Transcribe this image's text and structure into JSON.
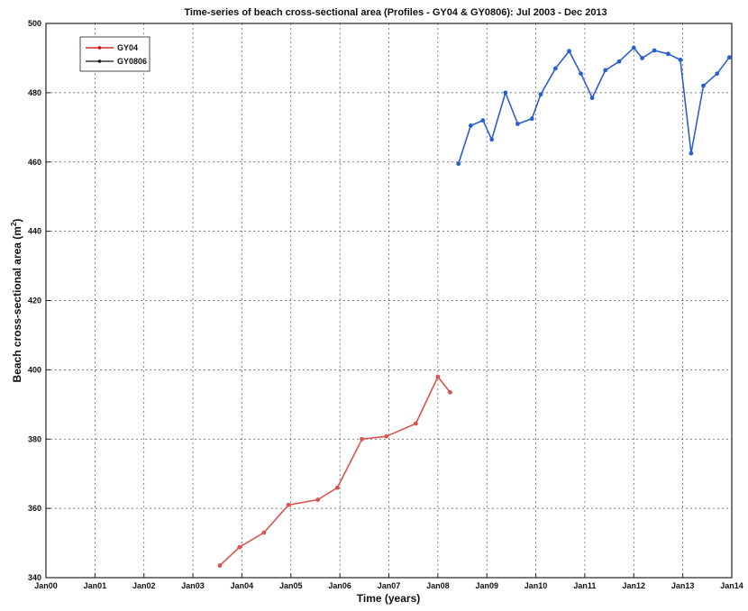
{
  "chart_data": {
    "type": "line",
    "title": "Time-series of beach cross-sectional area (Profiles - GY04 & GY0806): Jul 2003 - Dec 2013",
    "xlabel": "Time (years)",
    "ylabel": "Beach cross-sectional area (m",
    "ylabel_superscript": "2",
    "ylabel_close": ")",
    "x_tick_labels": [
      "Jan00",
      "Jan01",
      "Jan02",
      "Jan03",
      "Jan04",
      "Jan05",
      "Jan06",
      "Jan07",
      "Jan08",
      "Jan09",
      "Jan10",
      "Jan11",
      "Jan12",
      "Jan13",
      "Jan14"
    ],
    "x_range": [
      2000.0,
      2014.0
    ],
    "y_ticks": [
      340,
      360,
      380,
      400,
      420,
      440,
      460,
      480,
      500
    ],
    "ylim": [
      340,
      500
    ],
    "grid": true,
    "legend_position": "top-left",
    "legend": [
      {
        "name": "GY04",
        "color": "#cc0000"
      },
      {
        "name": "GY0806",
        "color": "#111111"
      }
    ],
    "series": [
      {
        "name": "GY04",
        "color": "#d9534f",
        "x": [
          2003.55,
          2003.95,
          2004.45,
          2004.95,
          2005.55,
          2005.95,
          2006.45,
          2006.95,
          2007.55,
          2008.0,
          2008.25
        ],
        "y": [
          343.5,
          348.8,
          353.0,
          361.0,
          362.5,
          366.0,
          380.0,
          380.8,
          384.5,
          398.0,
          393.5
        ]
      },
      {
        "name": "GY0806",
        "color": "#2a5fd0",
        "x": [
          2008.42,
          2008.67,
          2008.92,
          2009.1,
          2009.38,
          2009.63,
          2009.92,
          2010.1,
          2010.4,
          2010.68,
          2010.92,
          2011.15,
          2011.42,
          2011.7,
          2012.0,
          2012.17,
          2012.42,
          2012.7,
          2012.95,
          2013.17,
          2013.42,
          2013.7,
          2013.95
        ],
        "y": [
          459.5,
          470.5,
          472.0,
          466.5,
          480.0,
          471.0,
          472.5,
          479.5,
          487.0,
          492.0,
          485.5,
          478.5,
          486.5,
          489.0,
          493.0,
          490.0,
          492.2,
          491.2,
          489.5,
          462.5,
          482.0,
          485.5,
          490.2
        ]
      }
    ]
  }
}
